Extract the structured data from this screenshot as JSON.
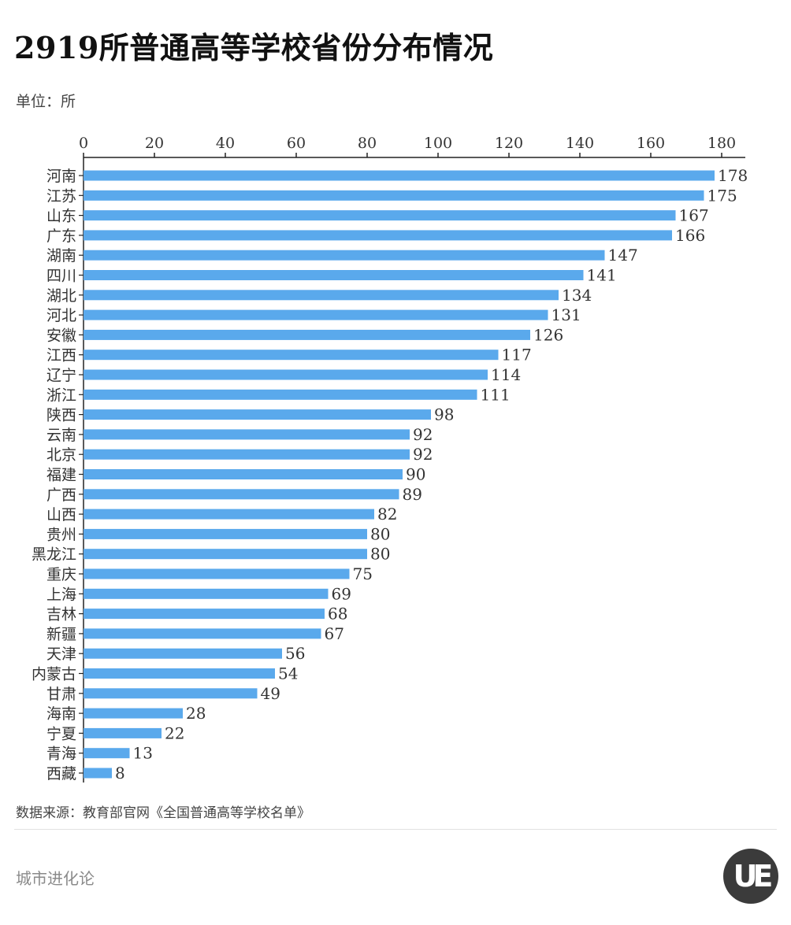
{
  "header": {
    "title": "2919所普通高等学校省份分布情况",
    "unit": "单位：所"
  },
  "footer": {
    "source": "数据来源：教育部官网《全国普通高等学校名单》",
    "brand": "城市进化论",
    "logo_text": "UE"
  },
  "colors": {
    "bar": "#5aa9ec",
    "axis": "#222222",
    "text": "#333333"
  },
  "chart_data": {
    "type": "bar",
    "orientation": "horizontal",
    "categories": [
      "河南",
      "江苏",
      "山东",
      "广东",
      "湖南",
      "四川",
      "湖北",
      "河北",
      "安徽",
      "江西",
      "辽宁",
      "浙江",
      "陕西",
      "云南",
      "北京",
      "福建",
      "广西",
      "山西",
      "贵州",
      "黑龙江",
      "重庆",
      "上海",
      "吉林",
      "新疆",
      "天津",
      "内蒙古",
      "甘肃",
      "海南",
      "宁夏",
      "青海",
      "西藏"
    ],
    "values": [
      178,
      175,
      167,
      166,
      147,
      141,
      134,
      131,
      126,
      117,
      114,
      111,
      98,
      92,
      92,
      90,
      89,
      82,
      80,
      80,
      75,
      69,
      68,
      67,
      56,
      54,
      49,
      28,
      22,
      13,
      8
    ],
    "xlim": [
      0,
      180
    ],
    "xticks": [
      0,
      20,
      40,
      60,
      80,
      100,
      120,
      140,
      160,
      180
    ],
    "xaxis_position": "top",
    "grid": false,
    "data_labels": true
  }
}
